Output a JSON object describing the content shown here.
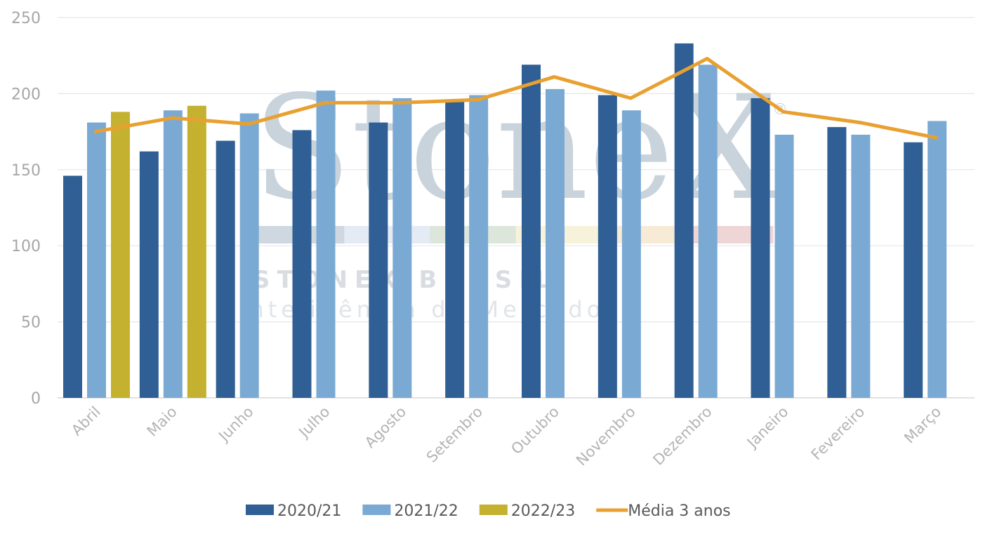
{
  "watermark": {
    "logo_text": "StoneX",
    "line1": "STONEX BRASIL",
    "line2": "Inteligência de Mercado",
    "registered": "®",
    "band_colors": [
      "#c7d1db",
      "#dfe8f3",
      "#d6e2d5",
      "#f6f0d4",
      "#f7e7cf",
      "#eccfcf"
    ]
  },
  "colors": {
    "2020/21": "#2f5f94",
    "2021/22": "#7aaad3",
    "2022/23": "#c4b12f",
    "Média 3 anos": "#e8a030",
    "grid": "#e6e6e6",
    "axis": "#d9d9d9"
  },
  "chart_data": {
    "type": "bar",
    "categories": [
      "Abril",
      "Maio",
      "Junho",
      "Julho",
      "Agosto",
      "Setembro",
      "Outubro",
      "Novembro",
      "Dezembro",
      "Janeiro",
      "Fevereiro",
      "Março"
    ],
    "series": [
      {
        "name": "2020/21",
        "type": "bar",
        "values": [
          146,
          162,
          169,
          176,
          181,
          196,
          219,
          199,
          233,
          197,
          178,
          168
        ]
      },
      {
        "name": "2021/22",
        "type": "bar",
        "values": [
          181,
          189,
          187,
          202,
          197,
          199,
          203,
          189,
          219,
          173,
          173,
          182
        ]
      },
      {
        "name": "2022/23",
        "type": "bar",
        "values": [
          188,
          192,
          null,
          null,
          null,
          null,
          null,
          null,
          null,
          null,
          null,
          null
        ]
      },
      {
        "name": "Média 3 anos",
        "type": "line",
        "values": [
          175,
          184,
          180,
          194,
          194,
          196,
          211,
          197,
          223,
          188,
          181,
          171
        ]
      }
    ],
    "ylim": [
      0,
      250
    ],
    "yticks": [
      0,
      50,
      100,
      150,
      200,
      250
    ],
    "title": "",
    "xlabel": "",
    "ylabel": "",
    "grid": true,
    "legend_position": "bottom"
  }
}
